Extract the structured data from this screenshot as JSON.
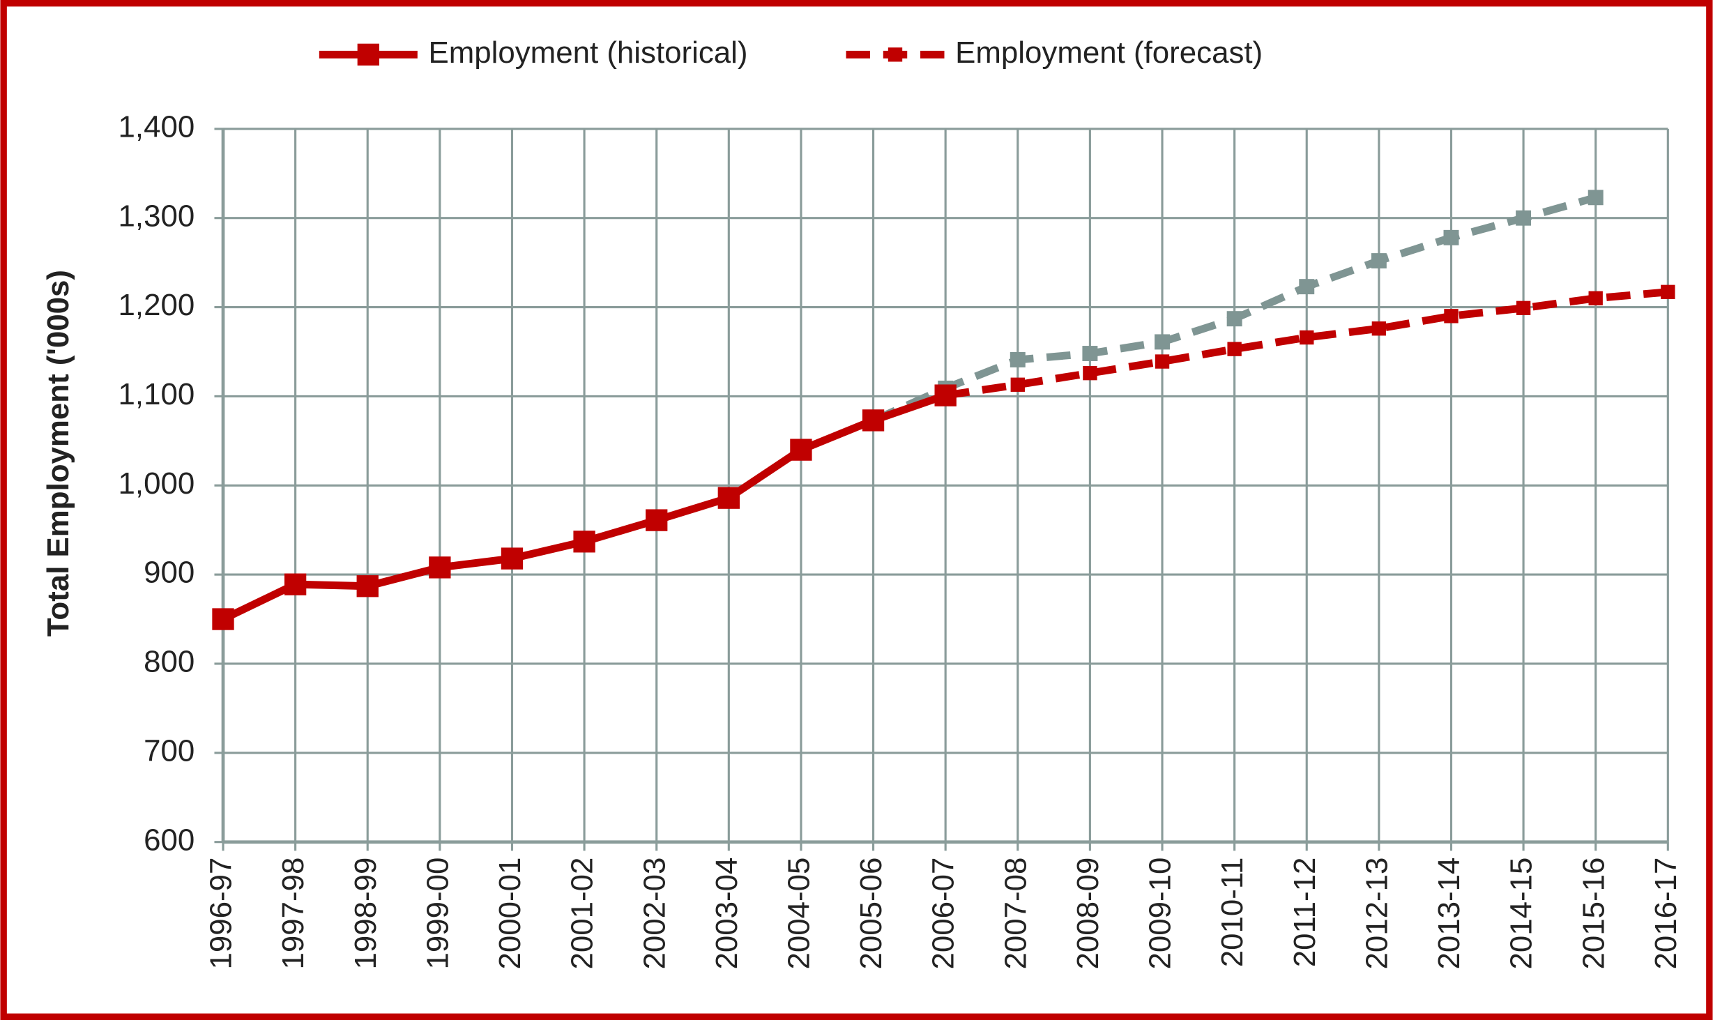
{
  "chart_data": {
    "type": "line",
    "y_label": "Total Employment  ('000s)",
    "categories": [
      "1996-97",
      "1997-98",
      "1998-99",
      "1999-00",
      "2000-01",
      "2001-02",
      "2002-03",
      "2003-04",
      "2004-05",
      "2005-06",
      "2006-07",
      "2007-08",
      "2008-09",
      "2009-10",
      "2010-11",
      "2011-12",
      "2012-13",
      "2013-14",
      "2014-15",
      "2015-16",
      "2016-17"
    ],
    "series": [
      {
        "name": "Employment (historical)",
        "color": "#c00000",
        "line_style": "solid",
        "marker_size": 20,
        "values": [
          850,
          889,
          887,
          908,
          918,
          937,
          961,
          986,
          1040,
          1073,
          1101,
          null,
          null,
          null,
          null,
          null,
          null,
          null,
          null,
          null,
          null
        ]
      },
      {
        "name": "Employment (forecast)",
        "color": "#c00000",
        "line_style": "dashed",
        "marker_size": 13,
        "values": [
          null,
          null,
          null,
          null,
          null,
          null,
          null,
          null,
          null,
          null,
          1101,
          1113,
          1126,
          1139,
          1153,
          1166,
          1176,
          1190,
          1199,
          1210,
          1217
        ]
      },
      {
        "color": "#7f9593",
        "line_style": "dashed",
        "marker_size": 14,
        "values": [
          null,
          null,
          null,
          null,
          null,
          null,
          null,
          null,
          null,
          1073,
          1109,
          1141,
          1148,
          1161,
          1187,
          1223,
          1252,
          1278,
          1300,
          1323,
          null
        ]
      }
    ],
    "ylim": [
      600,
      1400
    ],
    "yticks": [
      600,
      700,
      800,
      900,
      {
        "value": 1000,
        "label": "1,000"
      },
      {
        "value": 1100,
        "label": "1,100"
      },
      {
        "value": 1200,
        "label": "1,200"
      },
      {
        "value": 1300,
        "label": "1,300"
      },
      {
        "value": 1400,
        "label": "1,400"
      }
    ],
    "grid": true,
    "legend": "top"
  }
}
